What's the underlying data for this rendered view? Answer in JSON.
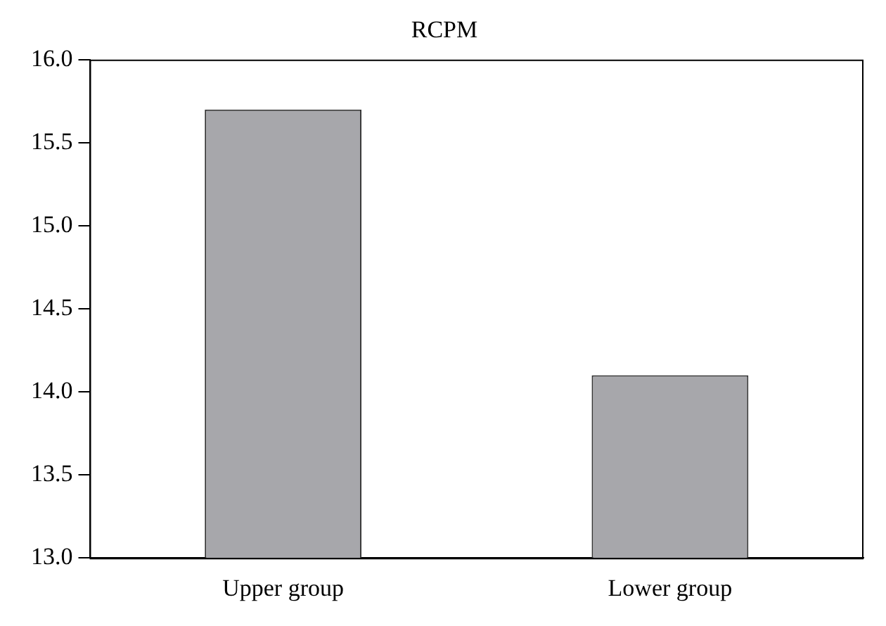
{
  "chart_data": {
    "type": "bar",
    "title": "RCPM",
    "categories": [
      "Upper group",
      "Lower group"
    ],
    "values": [
      15.7,
      14.1
    ],
    "color": "#a7a7ab",
    "ylim": [
      13.0,
      16.0
    ],
    "yticks": [
      {
        "value": 13,
        "label": "13.0"
      },
      {
        "value": 13.5,
        "label": "13.5"
      },
      {
        "value": 14,
        "label": "14.0"
      },
      {
        "value": 14.5,
        "label": "14.5"
      },
      {
        "value": 15,
        "label": "15.0"
      },
      {
        "value": 15.5,
        "label": "15.5"
      },
      {
        "value": 16,
        "label": "16.0"
      }
    ],
    "grid": false,
    "legend": false
  }
}
